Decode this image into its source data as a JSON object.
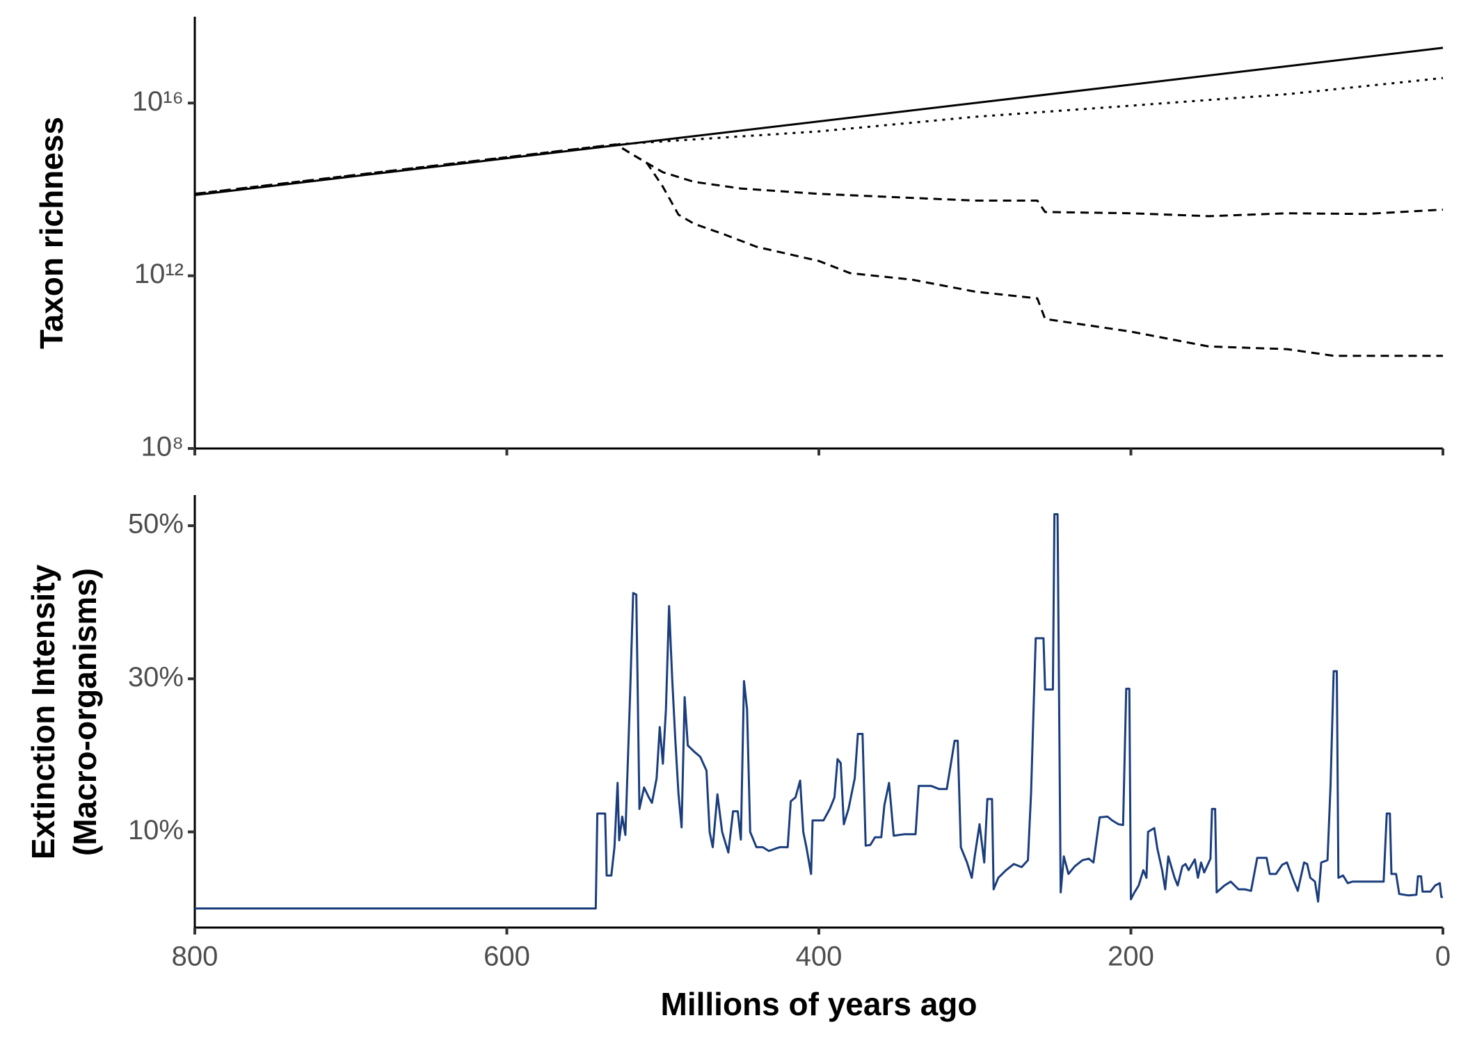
{
  "chart_data": [
    {
      "type": "line",
      "y_label": "Taxon richness",
      "log_y": true,
      "xlim": [
        800,
        0
      ],
      "xticks": [
        800,
        600,
        400,
        200,
        0
      ],
      "ylim": [
        100000000.0,
        1e+18
      ],
      "yticks": [
        {
          "value": 100000000.0,
          "label": "10⁸"
        },
        {
          "value": 1000000000000.0,
          "label": "10¹²"
        },
        {
          "value": 1e+16,
          "label": "10¹⁶"
        }
      ],
      "series": [
        {
          "color": "#000000",
          "dash": "solid",
          "x": [
            800,
            530,
            0
          ],
          "values": [
            74000000000000.0,
            1050000000000000.0,
            1.9e+17
          ]
        },
        {
          "color": "#000000",
          "dash": "dotted",
          "x": [
            800,
            530,
            400,
            300,
            200,
            100,
            0
          ],
          "values": [
            79000000000000.0,
            1100000000000000.0,
            2200000000000000.0,
            4800000000000000.0,
            8700000000000000.0,
            1.6e+16,
            3.8e+16
          ]
        },
        {
          "color": "#000000",
          "dash": "dashed",
          "x": [
            800,
            530,
            520,
            500,
            480,
            450,
            400,
            300,
            260,
            255,
            200,
            150,
            100,
            50,
            0
          ],
          "values": [
            79000000000000.0,
            1100000000000000.0,
            660000000000000.0,
            250000000000000.0,
            150000000000000.0,
            105000000000000.0,
            79000000000000.0,
            55000000000000.0,
            55000000000000.0,
            30000000000000.0,
            28000000000000.0,
            24000000000000.0,
            28000000000000.0,
            27000000000000.0,
            34000000000000.0
          ]
        },
        {
          "color": "#000000",
          "dash": "dashed",
          "x": [
            800,
            530,
            510,
            500,
            490,
            480,
            460,
            440,
            400,
            380,
            340,
            300,
            260,
            255,
            200,
            150,
            100,
            70,
            50,
            0
          ],
          "values": [
            79000000000000.0,
            1100000000000000.0,
            400000000000000.0,
            115000000000000.0,
            26000000000000.0,
            16000000000000.0,
            8900000000000.0,
            4700000000000.0,
            2200000000000.0,
            1150000000000.0,
            810000000000.0,
            430000000000.0,
            300000000000.0,
            100000000000.0,
            51000000000.0,
            23000000000.0,
            20000000000.0,
            14000000000.0,
            14000000000.0,
            14000000000.0
          ]
        }
      ]
    },
    {
      "type": "line",
      "y_label": [
        "Extinction Intensity",
        "(Macro-organisms)"
      ],
      "x_label": "Millions of years ago",
      "xlim": [
        800,
        0
      ],
      "xticks": [
        800,
        600,
        400,
        200,
        0
      ],
      "ylim": [
        -2.5,
        54
      ],
      "yticks": [
        {
          "value": 10,
          "label": "10%"
        },
        {
          "value": 30,
          "label": "30%"
        },
        {
          "value": 50,
          "label": "50%"
        }
      ],
      "series": [
        {
          "color": "#1a3d7c",
          "dash": "solid",
          "x": [
            800,
            543,
            542,
            537,
            536,
            533,
            531,
            529,
            528,
            526,
            524,
            521,
            519,
            517,
            515,
            512,
            509,
            507,
            504,
            502,
            500,
            498,
            496,
            494,
            492,
            490,
            488,
            486,
            484,
            480,
            476,
            472,
            470,
            468,
            465,
            462,
            458,
            455,
            452,
            450,
            448,
            446,
            444,
            440,
            436,
            432,
            428,
            425,
            420,
            418,
            415,
            412,
            410,
            408,
            405,
            404,
            397,
            393,
            390,
            388,
            386,
            384,
            381,
            377,
            375,
            372,
            370,
            367,
            364,
            360,
            358,
            355,
            352,
            345,
            338,
            336,
            328,
            323,
            318,
            313,
            311,
            309,
            305,
            302,
            300,
            297,
            294,
            292,
            289,
            288,
            285,
            280,
            275,
            270,
            266,
            264,
            261,
            256,
            255,
            250,
            249,
            247,
            245,
            243,
            240,
            236,
            231,
            227,
            224,
            220,
            215,
            212,
            208,
            205,
            203,
            201,
            200,
            198,
            195,
            192,
            190,
            189,
            185,
            183,
            180,
            178,
            176,
            172,
            170,
            167,
            165,
            163,
            159,
            157,
            155,
            153,
            149,
            148,
            146,
            145,
            140,
            136,
            131,
            127,
            123,
            119,
            113,
            111,
            107,
            103,
            100,
            96,
            93,
            89,
            87,
            85,
            82,
            80,
            78,
            74,
            72,
            70,
            68,
            67,
            64,
            61,
            58,
            53,
            45,
            38,
            36,
            34,
            33,
            30,
            28,
            22,
            17,
            16,
            14,
            13,
            8,
            5,
            2,
            1,
            0
          ],
          "values": [
            0,
            0,
            12.4,
            12.4,
            4.3,
            4.3,
            8,
            16.4,
            8.9,
            12,
            9.6,
            28,
            41.2,
            41,
            13,
            15.8,
            14.5,
            13.8,
            17,
            23.7,
            18.9,
            26,
            39.5,
            30,
            22,
            15,
            10.6,
            27.6,
            21.3,
            20.5,
            19.8,
            18,
            10,
            8,
            14.9,
            10,
            7.3,
            12.7,
            12.7,
            9,
            29.7,
            26,
            10,
            8,
            8,
            7.5,
            7.8,
            8,
            8,
            14,
            14.5,
            16.7,
            10,
            8,
            4.5,
            11.5,
            11.5,
            13,
            14.5,
            19.5,
            19,
            11,
            13,
            17,
            22.8,
            22.8,
            8.2,
            8.3,
            9.3,
            9.3,
            13.5,
            16.4,
            9.5,
            9.7,
            9.7,
            16,
            16,
            15.6,
            15.6,
            21.9,
            21.9,
            8,
            6,
            4,
            7,
            11,
            6,
            14.3,
            14.3,
            2.5,
            4,
            5,
            5.8,
            5.4,
            6.3,
            15,
            35.3,
            35.3,
            28.6,
            28.6,
            51.5,
            51.5,
            2.1,
            6.8,
            4.5,
            5.5,
            6.3,
            6.5,
            6,
            11.9,
            12,
            11.5,
            11,
            10.9,
            28.7,
            28.7,
            1.2,
            2,
            3,
            5,
            4,
            10,
            10.5,
            7.8,
            5,
            2.5,
            6.8,
            4,
            3,
            5.5,
            5.8,
            5,
            6.4,
            4,
            6,
            4.7,
            6.5,
            13,
            13,
            2.1,
            3,
            3.5,
            2.5,
            2.5,
            2.3,
            6.6,
            6.6,
            4.5,
            4.5,
            5.7,
            6,
            3.8,
            2.3,
            6,
            5.8,
            4,
            3.5,
            0.9,
            6,
            6.3,
            16.1,
            31,
            31,
            4,
            4.3,
            3.3,
            3.5,
            3.5,
            3.5,
            3.5,
            12.4,
            12.4,
            4.5,
            4.5,
            1.9,
            1.7,
            1.8,
            4.2,
            4.2,
            2.2,
            2.2,
            3,
            3.3,
            1.5,
            1.5
          ]
        }
      ]
    }
  ]
}
